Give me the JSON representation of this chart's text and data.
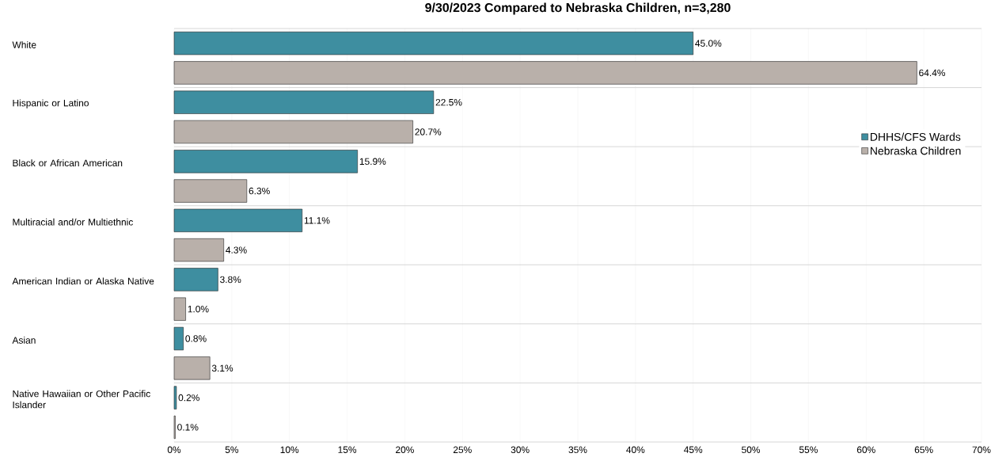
{
  "chart_data": {
    "type": "bar",
    "orientation": "horizontal",
    "title": "9/30/2023 Compared to Nebraska Children, n=3,280",
    "categories": [
      "White",
      "Hispanic or Latino",
      "Black or African American",
      "Multiracial and/or Multiethnic",
      "American Indian or Alaska Native",
      "Asian",
      "Native Hawaiian or Other Pacific Islander"
    ],
    "series": [
      {
        "name": "DHHS/CFS Wards",
        "color": "#3e8ea0",
        "values": [
          45.0,
          22.5,
          15.9,
          11.1,
          3.8,
          0.8,
          0.2
        ],
        "value_labels": [
          "45.0%",
          "22.5%",
          "15.9%",
          "11.1%",
          "3.8%",
          "0.8%",
          "0.2%"
        ]
      },
      {
        "name": "Nebraska Children",
        "color": "#b9b0aa",
        "values": [
          64.4,
          20.7,
          6.3,
          4.3,
          1.0,
          3.1,
          0.1
        ],
        "value_labels": [
          "64.4%",
          "20.7%",
          "6.3%",
          "4.3%",
          "1.0%",
          "3.1%",
          "0.1%"
        ]
      }
    ],
    "xlim": [
      0,
      70
    ],
    "xticks": [
      {
        "value": 0,
        "label": "0%"
      },
      {
        "value": 5,
        "label": "5%"
      },
      {
        "value": 10,
        "label": "10%"
      },
      {
        "value": 15,
        "label": "15%"
      },
      {
        "value": 20,
        "label": "20%"
      },
      {
        "value": 25,
        "label": "25%"
      },
      {
        "value": 30,
        "label": "30%"
      },
      {
        "value": 35,
        "label": "35%"
      },
      {
        "value": 40,
        "label": "40%"
      },
      {
        "value": 45,
        "label": "45%"
      },
      {
        "value": 50,
        "label": "50%"
      },
      {
        "value": 55,
        "label": "55%"
      },
      {
        "value": 60,
        "label": "60%"
      },
      {
        "value": 65,
        "label": "65%"
      },
      {
        "value": 70,
        "label": "70%"
      }
    ],
    "grid": "x",
    "legend": "right"
  }
}
